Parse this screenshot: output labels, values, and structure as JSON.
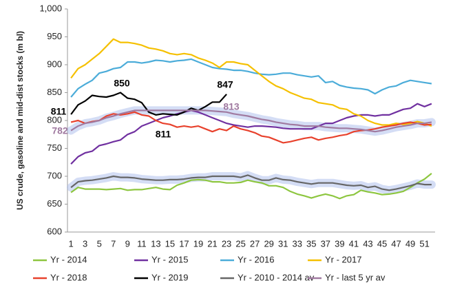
{
  "chart_data": {
    "type": "line",
    "y_axis_label": "US crude, gasoline and mid-dist stocks (m bl)",
    "categories": [
      "1",
      null,
      "3",
      null,
      "5",
      null,
      "7",
      null,
      "9",
      null,
      "11",
      null,
      "13",
      null,
      "15",
      null,
      "17",
      null,
      "19",
      null,
      "21",
      null,
      "23",
      null,
      "25",
      null,
      "27",
      null,
      "29",
      null,
      "31",
      null,
      "33",
      null,
      "35",
      null,
      "37",
      null,
      "39",
      null,
      "41",
      null,
      "43",
      null,
      "45",
      null,
      "47",
      null,
      "49",
      null,
      "51",
      null
    ],
    "ylim": [
      600,
      1000
    ],
    "yticks": [
      600,
      650,
      700,
      750,
      800,
      850,
      900,
      950,
      {
        "value": 1000,
        "label": "1,000"
      }
    ],
    "grid": false,
    "legend": "bottom",
    "series": [
      {
        "name": "Yr - 2014",
        "color": "#8dc63f",
        "values": [
          671,
          680,
          677,
          677,
          677,
          676,
          677,
          678,
          675,
          676,
          676,
          678,
          680,
          677,
          676,
          684,
          688,
          693,
          694,
          693,
          690,
          690,
          688,
          688,
          689,
          693,
          690,
          688,
          683,
          683,
          680,
          673,
          668,
          665,
          661,
          665,
          668,
          665,
          660,
          665,
          667,
          675,
          672,
          670,
          667,
          668,
          670,
          673,
          680,
          688,
          695,
          705
        ]
      },
      {
        "name": "Yr - 2015",
        "color": "#7030a0",
        "values": [
          722,
          735,
          742,
          745,
          755,
          758,
          762,
          765,
          775,
          780,
          790,
          795,
          800,
          805,
          808,
          812,
          815,
          818,
          815,
          810,
          805,
          800,
          795,
          792,
          790,
          788,
          790,
          790,
          789,
          788,
          786,
          785,
          785,
          785,
          785,
          790,
          795,
          795,
          800,
          805,
          808,
          810,
          810,
          808,
          810,
          810,
          815,
          820,
          822,
          830,
          825,
          830
        ]
      },
      {
        "name": "Yr - 2016",
        "color": "#4bacd9",
        "values": [
          842,
          857,
          865,
          872,
          885,
          888,
          893,
          895,
          905,
          905,
          903,
          905,
          908,
          907,
          905,
          907,
          908,
          910,
          905,
          900,
          895,
          893,
          892,
          890,
          890,
          888,
          885,
          883,
          882,
          883,
          885,
          885,
          882,
          880,
          878,
          880,
          868,
          870,
          863,
          860,
          858,
          857,
          855,
          848,
          855,
          860,
          862,
          868,
          872,
          870,
          868,
          866
        ]
      },
      {
        "name": "Yr - 2017",
        "color": "#f5c000",
        "values": [
          876,
          893,
          900,
          910,
          920,
          933,
          946,
          940,
          940,
          938,
          935,
          930,
          928,
          925,
          920,
          918,
          920,
          918,
          912,
          908,
          903,
          895,
          905,
          905,
          902,
          900,
          890,
          880,
          870,
          862,
          857,
          850,
          845,
          840,
          838,
          832,
          830,
          828,
          822,
          820,
          812,
          808,
          800,
          795,
          792,
          792,
          795,
          793,
          795,
          798,
          795,
          790
        ]
      },
      {
        "name": "Yr - 2018",
        "color": "#e8412c",
        "values": [
          797,
          800,
          795,
          798,
          800,
          808,
          812,
          810,
          812,
          815,
          810,
          808,
          800,
          795,
          793,
          788,
          790,
          788,
          790,
          785,
          780,
          785,
          782,
          790,
          785,
          782,
          778,
          772,
          770,
          765,
          760,
          762,
          765,
          768,
          770,
          765,
          768,
          770,
          773,
          775,
          780,
          782,
          783,
          785,
          788,
          790,
          792,
          795,
          797,
          795,
          792,
          793
        ]
      },
      {
        "name": "Yr - 2019",
        "color": "#000000",
        "values": [
          811,
          828,
          835,
          845,
          843,
          842,
          845,
          850,
          840,
          838,
          832,
          815,
          810,
          812,
          811,
          810,
          815,
          822,
          818,
          825,
          833,
          833,
          847,
          null,
          null,
          null,
          null,
          null,
          null,
          null,
          null,
          null,
          null,
          null,
          null,
          null,
          null,
          null,
          null,
          null,
          null,
          null,
          null,
          null,
          null,
          null,
          null,
          null,
          null,
          null,
          null,
          null
        ]
      },
      {
        "name": "Yr - 2010 - 2014 av",
        "color": "#666666",
        "halo": true,
        "values": [
          680,
          690,
          692,
          693,
          695,
          697,
          700,
          698,
          698,
          697,
          695,
          694,
          693,
          693,
          694,
          694,
          695,
          697,
          698,
          698,
          700,
          700,
          700,
          700,
          698,
          702,
          697,
          693,
          693,
          697,
          694,
          693,
          690,
          688,
          686,
          688,
          688,
          688,
          686,
          684,
          683,
          684,
          680,
          682,
          677,
          675,
          677,
          680,
          683,
          687,
          685,
          685
        ]
      },
      {
        "name": "Yr - last 5 yr av",
        "color": "#a07aa0",
        "halo": true,
        "values": [
          782,
          790,
          795,
          797,
          800,
          805,
          808,
          812,
          815,
          818,
          818,
          818,
          818,
          818,
          818,
          818,
          818,
          818,
          818,
          818,
          817,
          816,
          815,
          812,
          810,
          808,
          805,
          802,
          800,
          797,
          795,
          793,
          792,
          790,
          790,
          790,
          788,
          787,
          786,
          786,
          785,
          784,
          782,
          780,
          782,
          785,
          788,
          790,
          792,
          795,
          795,
          797
        ]
      }
    ],
    "annotations": [
      {
        "text": "850",
        "color": "#000000"
      },
      {
        "text": "811",
        "color": "#000000"
      },
      {
        "text": "811",
        "color": "#000000"
      },
      {
        "text": "847",
        "color": "#000000"
      },
      {
        "text": "813",
        "color": "#a07aa0"
      },
      {
        "text": "782",
        "color": "#a07aa0"
      }
    ]
  }
}
